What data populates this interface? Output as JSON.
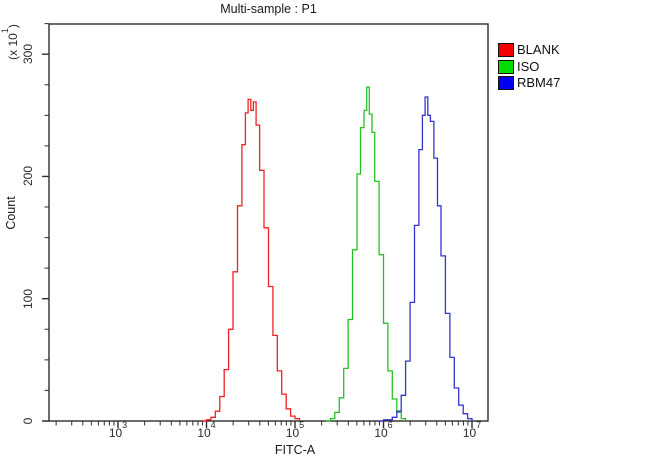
{
  "window": {
    "title": "Multi-sample : P1"
  },
  "legend": {
    "items": [
      {
        "label": "BLANK",
        "color": "#f00000"
      },
      {
        "label": "ISO",
        "color": "#00dd00"
      },
      {
        "label": "RBM47",
        "color": "#0000ee"
      }
    ]
  },
  "chart_data": {
    "type": "line",
    "style": "step-histogram-overlay",
    "title": "Multi-sample : P1",
    "xlabel": "FITC-A",
    "ylabel": "Count",
    "y_multiplier": {
      "prefix": "(x 10",
      "exp": "1",
      "suffix": ")"
    },
    "x_scale": "log10",
    "x_range_log10": [
      2.22,
      7.18
    ],
    "ylim": [
      0,
      325
    ],
    "grid": false,
    "legend_position": "top-right-outside",
    "y_major_ticks": [
      0,
      100,
      200,
      300
    ],
    "y_minor_tick_step": 25,
    "x_major_ticks": [
      {
        "log10": 3,
        "base": "10",
        "exp": "3"
      },
      {
        "log10": 4,
        "base": "10",
        "exp": "4"
      },
      {
        "log10": 5,
        "base": "10",
        "exp": "5"
      },
      {
        "log10": 6,
        "base": "10",
        "exp": "6"
      },
      {
        "log10": 7,
        "base": "10",
        "exp": "7"
      }
    ],
    "series": [
      {
        "name": "BLANK",
        "color": "#ed2224",
        "points": [
          [
            3.95,
            0
          ],
          [
            4.0,
            1
          ],
          [
            4.05,
            3
          ],
          [
            4.1,
            8
          ],
          [
            4.15,
            20
          ],
          [
            4.2,
            42
          ],
          [
            4.25,
            75
          ],
          [
            4.3,
            122
          ],
          [
            4.35,
            176
          ],
          [
            4.4,
            226
          ],
          [
            4.44,
            252
          ],
          [
            4.47,
            263
          ],
          [
            4.5,
            254
          ],
          [
            4.53,
            261
          ],
          [
            4.56,
            242
          ],
          [
            4.6,
            205
          ],
          [
            4.65,
            158
          ],
          [
            4.7,
            110
          ],
          [
            4.75,
            70
          ],
          [
            4.8,
            41
          ],
          [
            4.85,
            22
          ],
          [
            4.9,
            10
          ],
          [
            4.95,
            4
          ],
          [
            5.0,
            2
          ],
          [
            5.05,
            0
          ]
        ]
      },
      {
        "name": "ISO",
        "color": "#25c125",
        "points": [
          [
            5.35,
            0
          ],
          [
            5.4,
            2
          ],
          [
            5.45,
            7
          ],
          [
            5.5,
            19
          ],
          [
            5.55,
            43
          ],
          [
            5.6,
            83
          ],
          [
            5.65,
            140
          ],
          [
            5.7,
            202
          ],
          [
            5.74,
            240
          ],
          [
            5.78,
            254
          ],
          [
            5.81,
            273
          ],
          [
            5.84,
            251
          ],
          [
            5.87,
            236
          ],
          [
            5.9,
            196
          ],
          [
            5.95,
            136
          ],
          [
            6.0,
            80
          ],
          [
            6.05,
            41
          ],
          [
            6.1,
            18
          ],
          [
            6.15,
            7
          ],
          [
            6.2,
            2
          ],
          [
            6.25,
            0
          ]
        ]
      },
      {
        "name": "RBM47",
        "color": "#3434cf",
        "points": [
          [
            5.95,
            0
          ],
          [
            6.0,
            1
          ],
          [
            6.05,
            1
          ],
          [
            6.1,
            3
          ],
          [
            6.15,
            8
          ],
          [
            6.2,
            21
          ],
          [
            6.25,
            49
          ],
          [
            6.3,
            97
          ],
          [
            6.35,
            160
          ],
          [
            6.4,
            222
          ],
          [
            6.44,
            250
          ],
          [
            6.47,
            265
          ],
          [
            6.5,
            250
          ],
          [
            6.53,
            245
          ],
          [
            6.57,
            215
          ],
          [
            6.61,
            176
          ],
          [
            6.65,
            135
          ],
          [
            6.7,
            88
          ],
          [
            6.75,
            52
          ],
          [
            6.8,
            27
          ],
          [
            6.85,
            13
          ],
          [
            6.9,
            6
          ],
          [
            6.95,
            2
          ],
          [
            7.0,
            0
          ]
        ]
      }
    ]
  }
}
